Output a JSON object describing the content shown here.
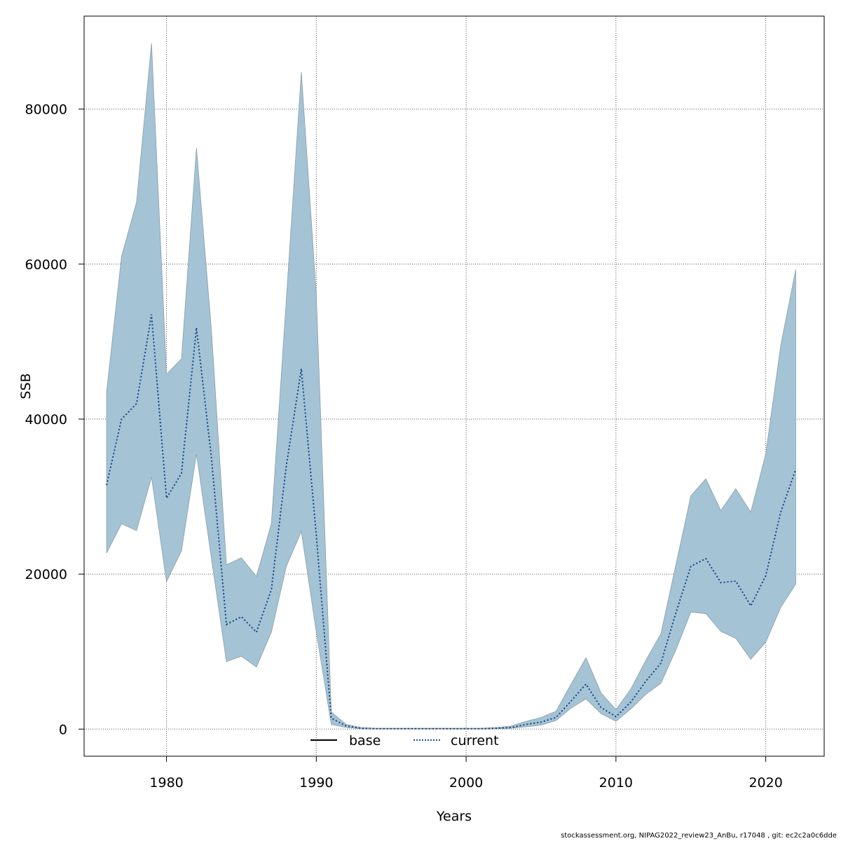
{
  "chart_data": {
    "type": "area",
    "xlabel": "Years",
    "ylabel": "SSB",
    "xlim": [
      1974.5,
      2023.9
    ],
    "ylim": [
      -3500,
      92000
    ],
    "x_ticks": [
      1980,
      1990,
      2000,
      2010,
      2020
    ],
    "y_ticks": [
      0,
      20000,
      40000,
      60000,
      80000
    ],
    "x_tick_labels": [
      "1980",
      "1990",
      "2000",
      "2010",
      "2020"
    ],
    "y_tick_labels": [
      "0",
      "20000",
      "40000",
      "60000",
      "80000"
    ],
    "grid": true,
    "legend_position": "bottom",
    "x": [
      1976,
      1977,
      1978,
      1979,
      1980,
      1981,
      1982,
      1983,
      1984,
      1985,
      1986,
      1987,
      1988,
      1989,
      1990,
      1991,
      1992,
      1993,
      1994,
      1995,
      1996,
      1997,
      1998,
      1999,
      2000,
      2001,
      2002,
      2003,
      2004,
      2005,
      2006,
      2007,
      2008,
      2009,
      2010,
      2011,
      2012,
      2013,
      2014,
      2015,
      2016,
      2017,
      2018,
      2019,
      2020,
      2021,
      2022
    ],
    "series": [
      {
        "name": "base",
        "color": "#000000",
        "dash": "solid",
        "values": [
          31500,
          40000,
          42000,
          53500,
          29800,
          33000,
          51800,
          35000,
          13500,
          14500,
          12500,
          18000,
          34000,
          46500,
          25000,
          1400,
          400,
          100,
          50,
          50,
          50,
          50,
          50,
          50,
          50,
          50,
          100,
          200,
          600,
          900,
          1500,
          3600,
          5800,
          2800,
          1600,
          3500,
          6200,
          8500,
          15000,
          21000,
          22000,
          18900,
          19100,
          15900,
          19800,
          28000,
          33500
        ]
      },
      {
        "name": "current",
        "color": "#1d4f91",
        "dash": "dotted",
        "values": [
          31500,
          40000,
          42000,
          53500,
          29800,
          33000,
          51800,
          35000,
          13500,
          14500,
          12500,
          18000,
          34000,
          46500,
          25000,
          1400,
          400,
          100,
          50,
          50,
          50,
          50,
          50,
          50,
          50,
          50,
          100,
          200,
          600,
          900,
          1500,
          3600,
          5800,
          2800,
          1600,
          3500,
          6200,
          8500,
          15000,
          21000,
          22000,
          18900,
          19100,
          15900,
          19800,
          28000,
          33500
        ]
      }
    ],
    "band": {
      "color": "#a4c3d5",
      "upper": [
        43500,
        61000,
        68000,
        88500,
        45800,
        47800,
        75000,
        51500,
        21200,
        22100,
        19700,
        26500,
        55500,
        84800,
        56000,
        2200,
        600,
        200,
        100,
        100,
        100,
        100,
        100,
        100,
        100,
        100,
        200,
        400,
        1000,
        1500,
        2300,
        5800,
        9200,
        4700,
        2500,
        5200,
        8900,
        12300,
        21200,
        30100,
        32300,
        28200,
        31000,
        28000,
        35500,
        49500,
        59300
      ],
      "lower": [
        22700,
        26500,
        25600,
        32500,
        19000,
        23000,
        35500,
        22000,
        8700,
        9400,
        8000,
        12500,
        21000,
        25500,
        12500,
        600,
        200,
        50,
        25,
        25,
        25,
        25,
        25,
        25,
        25,
        25,
        50,
        100,
        300,
        500,
        1100,
        2700,
        3900,
        2000,
        1000,
        2600,
        4500,
        5900,
        10200,
        15100,
        14900,
        12600,
        11700,
        9000,
        11200,
        15700,
        18700
      ]
    }
  },
  "footer": {
    "text": "stockassessment.org, NIPAG2022_review23_AnBu, r17048 , git: ec2c2a0c6dde"
  }
}
